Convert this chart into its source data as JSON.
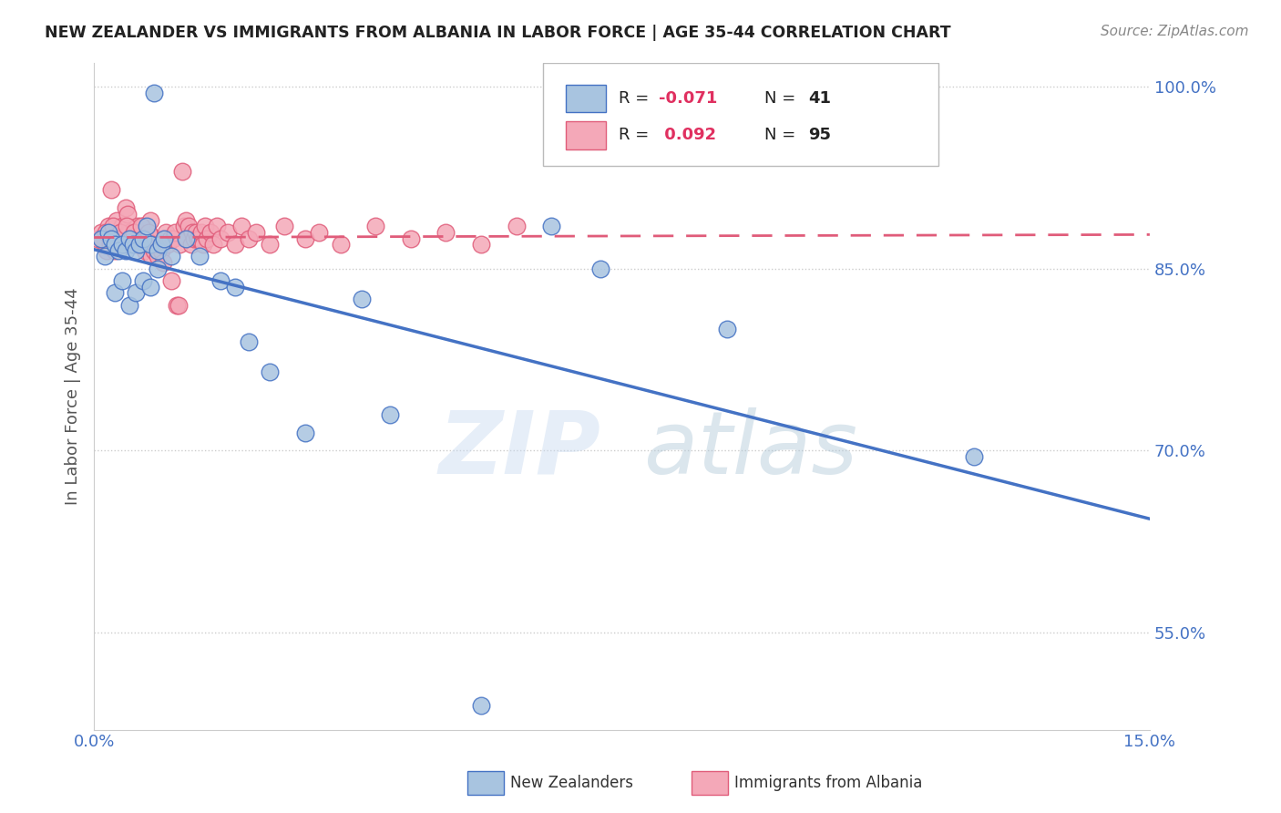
{
  "title": "NEW ZEALANDER VS IMMIGRANTS FROM ALBANIA IN LABOR FORCE | AGE 35-44 CORRELATION CHART",
  "source": "Source: ZipAtlas.com",
  "ylabel": "In Labor Force | Age 35-44",
  "color_nz": "#a8c4e0",
  "color_alb": "#f4a8b8",
  "color_nz_line": "#4472c4",
  "color_alb_line": "#e05c7a",
  "color_title": "#222222",
  "color_source": "#888888",
  "color_yticks": "#4472c4",
  "color_xticks": "#4472c4",
  "color_grid": "#cccccc",
  "nz_x": [
    0.1,
    0.15,
    0.2,
    0.25,
    0.3,
    0.35,
    0.4,
    0.45,
    0.5,
    0.55,
    0.6,
    0.65,
    0.7,
    0.75,
    0.8,
    0.85,
    0.9,
    0.95,
    1.0,
    1.1,
    1.3,
    1.5,
    1.8,
    2.0,
    2.2,
    2.5,
    3.0,
    3.8,
    4.2,
    5.5,
    6.5,
    7.2,
    9.0,
    12.5,
    0.3,
    0.4,
    0.5,
    0.6,
    0.7,
    0.8,
    0.9
  ],
  "nz_y": [
    87.5,
    86.0,
    88.0,
    87.5,
    87.0,
    86.5,
    87.0,
    86.5,
    87.5,
    87.0,
    86.5,
    87.0,
    87.5,
    88.5,
    87.0,
    99.5,
    86.5,
    87.0,
    87.5,
    86.0,
    87.5,
    86.0,
    84.0,
    83.5,
    79.0,
    76.5,
    71.5,
    82.5,
    73.0,
    49.0,
    88.5,
    85.0,
    80.0,
    69.5,
    83.0,
    84.0,
    82.0,
    83.0,
    84.0,
    83.5,
    85.0
  ],
  "alb_x": [
    0.05,
    0.1,
    0.15,
    0.18,
    0.2,
    0.22,
    0.25,
    0.28,
    0.3,
    0.32,
    0.35,
    0.38,
    0.4,
    0.42,
    0.45,
    0.48,
    0.5,
    0.52,
    0.55,
    0.58,
    0.6,
    0.62,
    0.65,
    0.68,
    0.7,
    0.72,
    0.75,
    0.78,
    0.8,
    0.82,
    0.85,
    0.88,
    0.9,
    0.92,
    0.95,
    0.98,
    1.0,
    1.02,
    1.05,
    1.08,
    1.1,
    1.12,
    1.15,
    1.18,
    1.2,
    1.22,
    1.25,
    1.28,
    1.3,
    1.32,
    1.35,
    1.38,
    1.4,
    1.42,
    1.45,
    1.48,
    1.5,
    1.52,
    1.55,
    1.58,
    1.6,
    1.65,
    1.7,
    1.75,
    1.8,
    1.9,
    2.0,
    2.1,
    2.2,
    2.3,
    2.5,
    2.7,
    3.0,
    3.2,
    3.5,
    4.0,
    4.5,
    5.0,
    5.5,
    6.0,
    0.12,
    0.17,
    0.23,
    0.27,
    0.33,
    0.37,
    0.43,
    0.47,
    0.53,
    0.57,
    0.63,
    0.67,
    0.73,
    0.77,
    0.83
  ],
  "alb_y": [
    87.5,
    88.0,
    87.0,
    86.5,
    88.5,
    87.0,
    91.5,
    87.5,
    86.5,
    89.0,
    88.0,
    87.0,
    88.5,
    87.0,
    90.0,
    89.5,
    88.0,
    87.5,
    88.0,
    87.5,
    87.0,
    88.5,
    88.0,
    87.0,
    88.5,
    86.5,
    87.5,
    88.0,
    89.0,
    86.0,
    86.5,
    87.5,
    86.0,
    87.0,
    86.5,
    85.5,
    87.5,
    88.0,
    87.0,
    87.5,
    84.0,
    87.5,
    88.0,
    82.0,
    82.0,
    87.0,
    93.0,
    88.5,
    89.0,
    87.5,
    88.5,
    87.0,
    88.0,
    87.5,
    88.0,
    87.5,
    87.5,
    88.0,
    87.0,
    88.5,
    87.5,
    88.0,
    87.0,
    88.5,
    87.5,
    88.0,
    87.0,
    88.5,
    87.5,
    88.0,
    87.0,
    88.5,
    87.5,
    88.0,
    87.0,
    88.5,
    87.5,
    88.0,
    87.0,
    88.5,
    87.5,
    88.0,
    87.0,
    88.5,
    87.5,
    88.0,
    87.0,
    88.5,
    87.5,
    88.0,
    87.0,
    88.5,
    87.5,
    88.0,
    87.0
  ],
  "ytick_positions": [
    55.0,
    70.0,
    85.0,
    100.0
  ],
  "ytick_labels": [
    "55.0%",
    "70.0%",
    "85.0%",
    "100.0%"
  ],
  "xmin": 0.0,
  "xmax": 15.0,
  "ymin": 47.0,
  "ymax": 102.0
}
